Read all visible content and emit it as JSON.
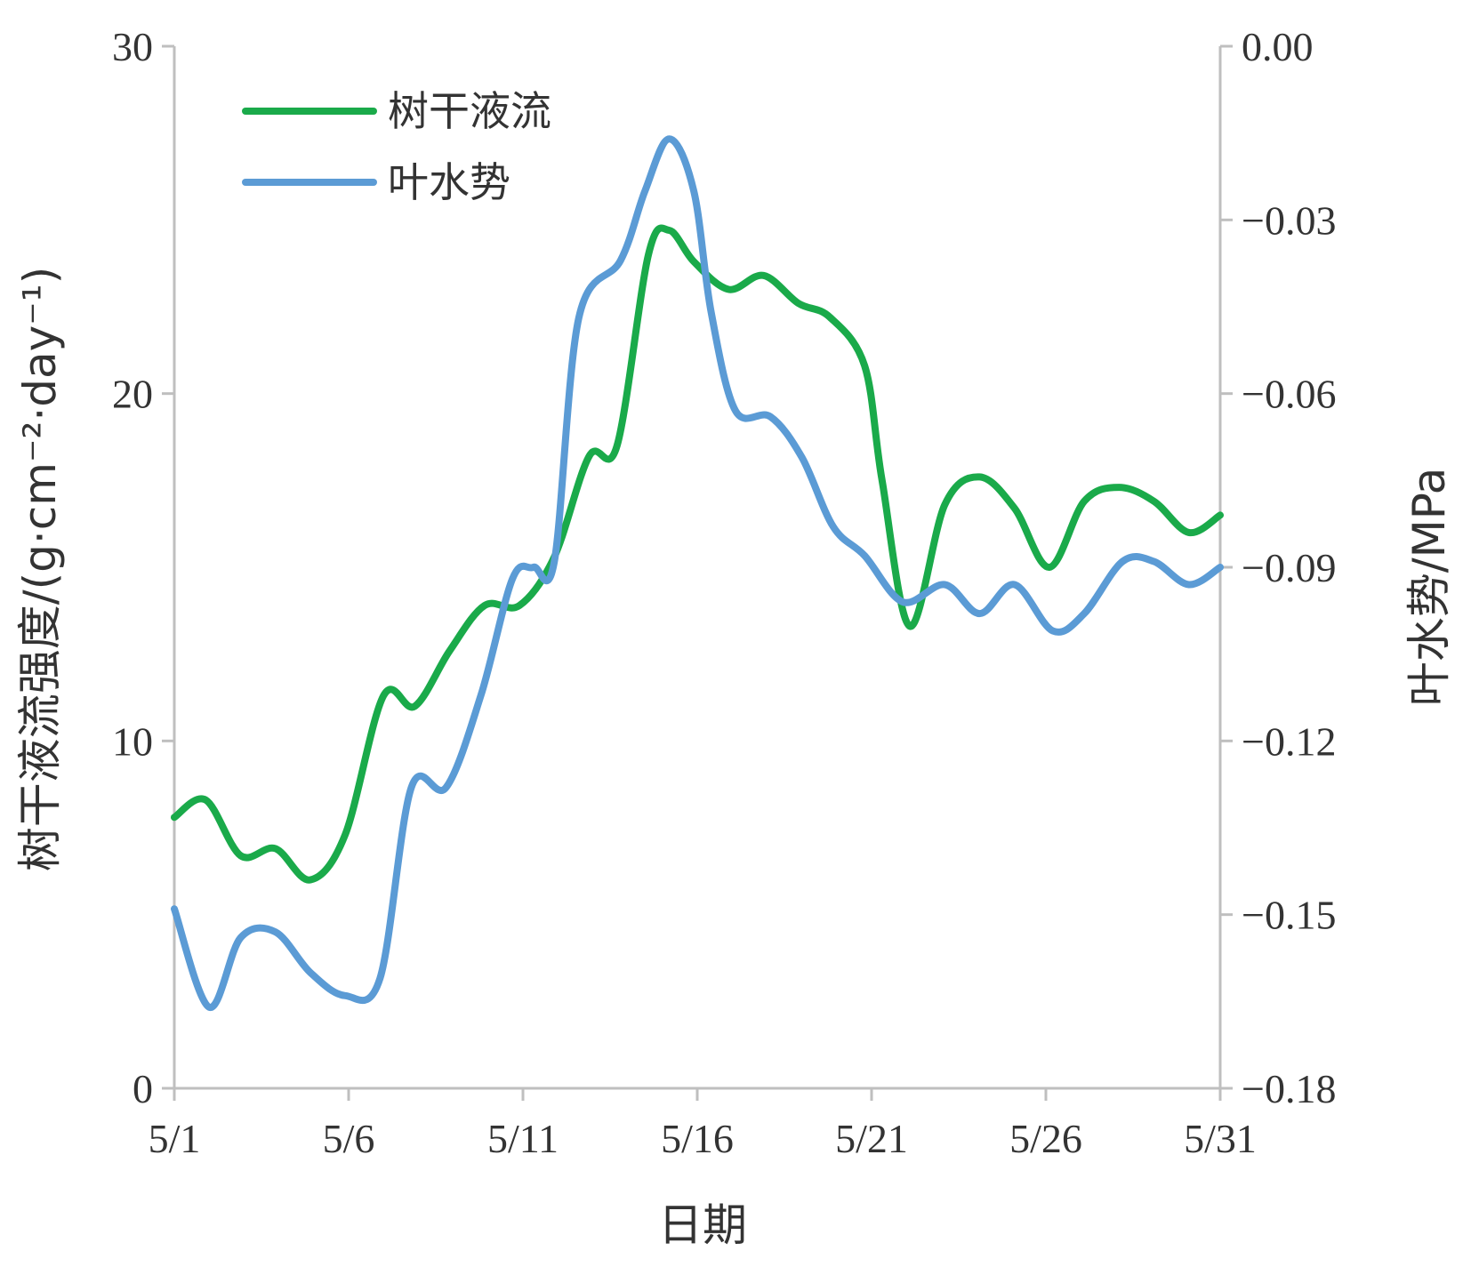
{
  "chart_data": {
    "type": "line",
    "xlabel": "日期",
    "ylabel_left": "树干液流强度/(g·cm⁻²·day⁻¹)",
    "ylabel_right": "叶水势/MPa",
    "x_tick_labels": [
      "5/1",
      "5/6",
      "5/11",
      "5/16",
      "5/21",
      "5/26",
      "5/31"
    ],
    "x_tick_days": [
      1,
      6,
      11,
      16,
      21,
      26,
      31
    ],
    "xlim": [
      1,
      31
    ],
    "ylim_left": [
      0,
      30
    ],
    "yticks_left": [
      "0",
      "10",
      "20",
      "30"
    ],
    "ylim_right": [
      -0.18,
      0.0
    ],
    "yticks_right": [
      "−0.18",
      "−0.15",
      "−0.12",
      "−0.09",
      "−0.06",
      "−0.03",
      "0.00"
    ],
    "legend_position": "top-left",
    "grid": false,
    "series": [
      {
        "name": "树干液流",
        "axis": "left",
        "color": "#1aaa4a",
        "x": [
          1,
          1.9,
          2.9,
          3.9,
          4.9,
          5.9,
          7.0,
          7.9,
          8.9,
          9.9,
          10.9,
          11.9,
          12.9,
          13.7,
          14.6,
          15.2,
          15.9,
          16.9,
          17.9,
          18.9,
          19.8,
          20.8,
          21.3,
          22.1,
          23.1,
          24.1,
          25.1,
          26.1,
          27.1,
          28.1,
          29.1,
          30.1,
          31
        ],
        "y": [
          7.8,
          8.3,
          6.7,
          6.9,
          6.0,
          7.3,
          11.3,
          11.0,
          12.6,
          13.9,
          13.9,
          15.3,
          18.2,
          18.5,
          24.0,
          24.7,
          23.8,
          23.0,
          23.4,
          22.6,
          22.2,
          20.8,
          17.5,
          13.3,
          16.8,
          17.6,
          16.7,
          15.0,
          16.9,
          17.3,
          16.9,
          16.0,
          16.5
        ]
      },
      {
        "name": "叶水势",
        "axis": "right",
        "color": "#5b9bd5",
        "x": [
          1,
          2.0,
          2.9,
          3.9,
          4.9,
          5.9,
          6.9,
          7.8,
          8.8,
          9.8,
          10.7,
          11.3,
          11.9,
          12.6,
          13.8,
          14.5,
          15.2,
          15.9,
          16.4,
          17.1,
          18.1,
          19.0,
          19.9,
          20.8,
          21.9,
          23.1,
          24.1,
          25.1,
          26.2,
          27.1,
          28.2,
          29.1,
          30.1,
          31
        ],
        "y": [
          -0.149,
          -0.166,
          -0.154,
          -0.153,
          -0.16,
          -0.164,
          -0.161,
          -0.128,
          -0.128,
          -0.112,
          -0.092,
          -0.09,
          -0.089,
          -0.047,
          -0.037,
          -0.025,
          -0.016,
          -0.025,
          -0.046,
          -0.063,
          -0.064,
          -0.071,
          -0.083,
          -0.088,
          -0.096,
          -0.093,
          -0.098,
          -0.093,
          -0.101,
          -0.098,
          -0.089,
          -0.089,
          -0.093,
          -0.09
        ]
      }
    ]
  }
}
